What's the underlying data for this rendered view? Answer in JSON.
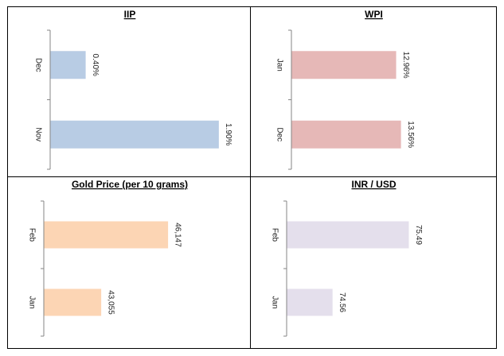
{
  "chart_data": [
    {
      "type": "bar",
      "orientation": "horizontal",
      "title": "IIP",
      "categories": [
        "Dec",
        "Nov"
      ],
      "values": [
        0.4,
        1.9
      ],
      "value_labels": [
        "0.40%",
        "1.90%"
      ],
      "xlim": [
        0,
        2.0
      ],
      "color": "#b8cce4",
      "grid": false,
      "legend": false
    },
    {
      "type": "bar",
      "orientation": "horizontal",
      "title": "WPI",
      "categories": [
        "Jan",
        "Dec"
      ],
      "values": [
        12.96,
        13.56
      ],
      "value_labels": [
        "12.96%",
        "13.56%"
      ],
      "xlim": [
        0,
        20.0
      ],
      "color": "#e6b8b7",
      "grid": false,
      "legend": false
    },
    {
      "type": "bar",
      "orientation": "horizontal",
      "title": "Gold Price (per 10 grams)",
      "categories": [
        "Feb",
        "Jan"
      ],
      "values": [
        46147,
        43055
      ],
      "value_labels": [
        "46,147",
        "43,055"
      ],
      "xlim": [
        40400,
        47800
      ],
      "color": "#fcd5b4",
      "grid": false,
      "legend": false
    },
    {
      "type": "bar",
      "orientation": "horizontal",
      "title": "INR / USD",
      "categories": [
        "Feb",
        "Jan"
      ],
      "values": [
        75.49,
        74.56
      ],
      "value_labels": [
        "75.49",
        "74.56"
      ],
      "xlim": [
        74.0,
        76.0
      ],
      "color": "#e4dfec",
      "grid": false,
      "legend": false
    }
  ]
}
